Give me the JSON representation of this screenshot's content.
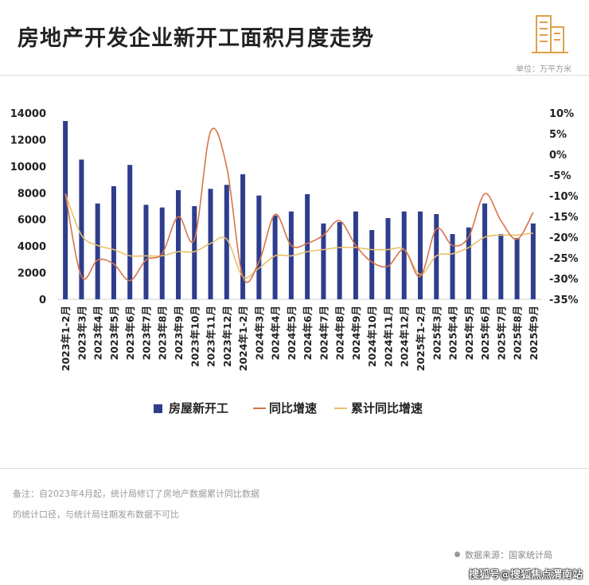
{
  "header": {
    "title": "房地产开发企业新开工面积月度走势",
    "unit": "单位：万平方米"
  },
  "footer": {
    "note_line1": "备注：自2023年4月起，统计局修订了房地产数据累计同比数据",
    "note_line2": "的统计口径，与统计局往期发布数据不可比",
    "source": "数据来源：国家统计局",
    "watermark": "搜狐号@搜狐焦点渭南站"
  },
  "colors": {
    "bar": "#2e3d8c",
    "yoy": "#d9734a",
    "cumulative": "#e7c06a",
    "axis_text": "#222222",
    "logo": "#e0a04a"
  },
  "chart_data": {
    "type": "bar",
    "categories": [
      "2023年1-2月",
      "2023年3月",
      "2023年4月",
      "2023年5月",
      "2023年6月",
      "2023年7月",
      "2023年8月",
      "2023年9月",
      "2023年10月",
      "2023年11月",
      "2023年12月",
      "2024年1-2月",
      "2024年3月",
      "2024年4月",
      "2024年5月",
      "2024年6月",
      "2024年7月",
      "2024年8月",
      "2024年9月",
      "2024年10月",
      "2024年11月",
      "2024年12月",
      "2025年1-2月",
      "2025年3月",
      "2025年4月",
      "2025年5月",
      "2025年6月",
      "2025年7月",
      "2025年8月",
      "2025年9月"
    ],
    "series": [
      {
        "name": "房屋新开工",
        "type": "bar",
        "axis": "left",
        "values": [
          13400,
          10500,
          7200,
          8500,
          10100,
          7100,
          6900,
          8200,
          7000,
          8300,
          8600,
          9400,
          7800,
          6300,
          6600,
          7900,
          5700,
          5800,
          6600,
          5200,
          6100,
          6600,
          6600,
          6400,
          4900,
          5400,
          7200,
          4900,
          4600,
          5700
        ]
      },
      {
        "name": "同比增速",
        "type": "line",
        "axis": "right",
        "values": [
          -9.5,
          -29.5,
          -25.5,
          -26.5,
          -30.5,
          -25.5,
          -24.0,
          -15.0,
          -20.5,
          5.5,
          -3.0,
          -29.5,
          -26.0,
          -14.5,
          -22.0,
          -21.5,
          -19.5,
          -16.0,
          -22.0,
          -26.0,
          -27.0,
          -23.0,
          -29.5,
          -18.0,
          -22.0,
          -20.0,
          -9.5,
          -16.0,
          -20.5,
          -14.0
        ]
      },
      {
        "name": "累计同比增速",
        "type": "line",
        "axis": "right",
        "values": [
          -9.5,
          -19.5,
          -22.0,
          -23.0,
          -24.5,
          -24.5,
          -24.5,
          -23.5,
          -23.5,
          -21.5,
          -20.5,
          -29.5,
          -27.5,
          -24.5,
          -24.5,
          -23.5,
          -23.0,
          -22.5,
          -22.5,
          -23.0,
          -23.0,
          -23.0,
          -29.0,
          -24.5,
          -24.0,
          -22.5,
          -20.0,
          -19.5,
          -19.5,
          -19.0
        ]
      }
    ],
    "y_left": {
      "min": 0,
      "max": 14000,
      "ticks": [
        "0",
        "2000",
        "4000",
        "6000",
        "8000",
        "10000",
        "12000",
        "14000"
      ]
    },
    "y_right": {
      "min": -35,
      "max": 10,
      "ticks": [
        "-35%",
        "-30%",
        "-25%",
        "-20%",
        "-15%",
        "-10%",
        "-5%",
        "0%",
        "5%",
        "10%"
      ]
    },
    "legend_position": "bottom",
    "grid": false
  }
}
